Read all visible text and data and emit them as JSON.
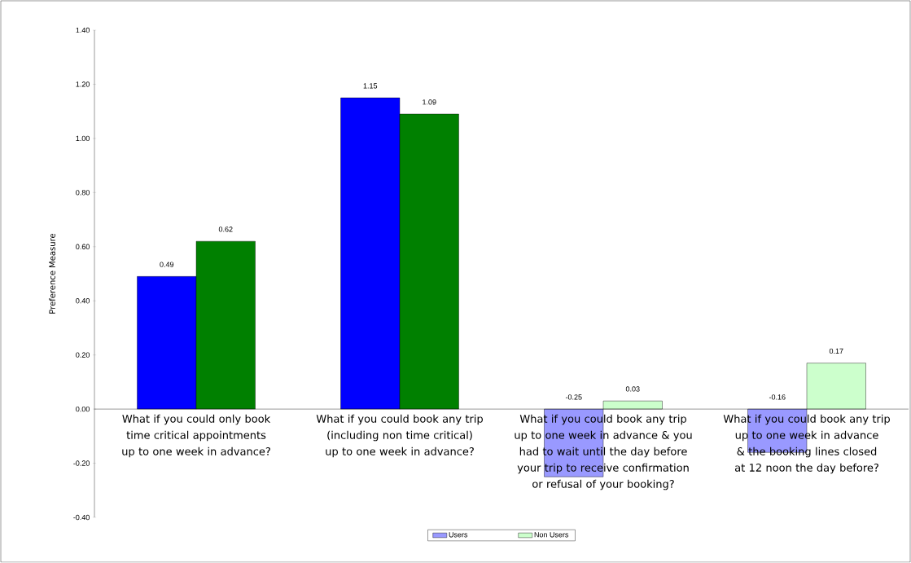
{
  "chart_data": {
    "type": "bar",
    "ylabel": "Preference Measure",
    "categories": [
      "What if you could only book time critical appointments up to one week in advance?",
      "What if you could book any trip (including non time critical) up to one week in advance?",
      "What if you could book any trip up to one week in advance & you had to wait until the day before your trip to receive confirmation or refusal of your booking?",
      "What if you could book any trip up to one week in advance & the booking lines closed at 12 noon the day before?"
    ],
    "series": [
      {
        "name": "Users",
        "color": "#9999ff",
        "colors": [
          "#0000ff",
          "#0000ff",
          "#9999ff",
          "#9999ff"
        ],
        "values": [
          0.49,
          1.15,
          -0.25,
          -0.16
        ]
      },
      {
        "name": "Non Users",
        "color": "#ccffcc",
        "colors": [
          "#008000",
          "#008000",
          "#ccffcc",
          "#ccffcc"
        ],
        "values": [
          0.62,
          1.09,
          0.03,
          0.17
        ]
      }
    ],
    "ylim": [
      -0.4,
      1.4
    ],
    "yticks": [
      {
        "value": -0.4,
        "label": "-0.40"
      },
      {
        "value": -0.2,
        "label": "-0.20"
      },
      {
        "value": 0,
        "label": "0.00"
      },
      {
        "value": 0.2,
        "label": "0.20"
      },
      {
        "value": 0.4,
        "label": "0.40"
      },
      {
        "value": 0.6,
        "label": "0.60"
      },
      {
        "value": 0.8,
        "label": "0.80"
      },
      {
        "value": 1.0,
        "label": "1.00"
      },
      {
        "value": 1.2,
        "label": "1.20"
      },
      {
        "value": 1.4,
        "label": "1.40"
      }
    ],
    "data_labels": true,
    "legend": "bottom",
    "grid": false
  }
}
